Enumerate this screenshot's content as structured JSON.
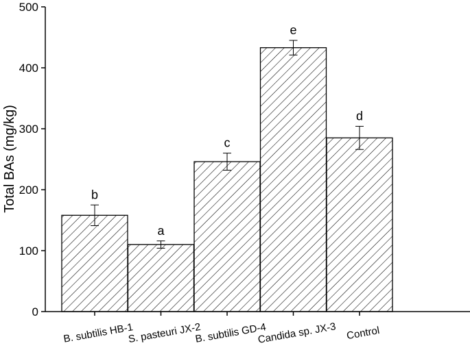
{
  "chart_data": {
    "type": "bar",
    "title": "",
    "xlabel": "",
    "ylabel": "Total BAs (mg/kg)",
    "ylim": [
      0,
      500
    ],
    "yticks": [
      0,
      100,
      200,
      300,
      400,
      500
    ],
    "categories": [
      "B. subtilis HB-1",
      "S. pasteuri JX-2",
      "B. subtilis GD-4",
      "Candida sp.  JX-3",
      "Control"
    ],
    "values": [
      158,
      110,
      246,
      433,
      285
    ],
    "errors": [
      17,
      6,
      14,
      12,
      19
    ],
    "significance": [
      "b",
      "a",
      "c",
      "e",
      "d"
    ],
    "bar_fill": "hatched",
    "grid": false
  }
}
